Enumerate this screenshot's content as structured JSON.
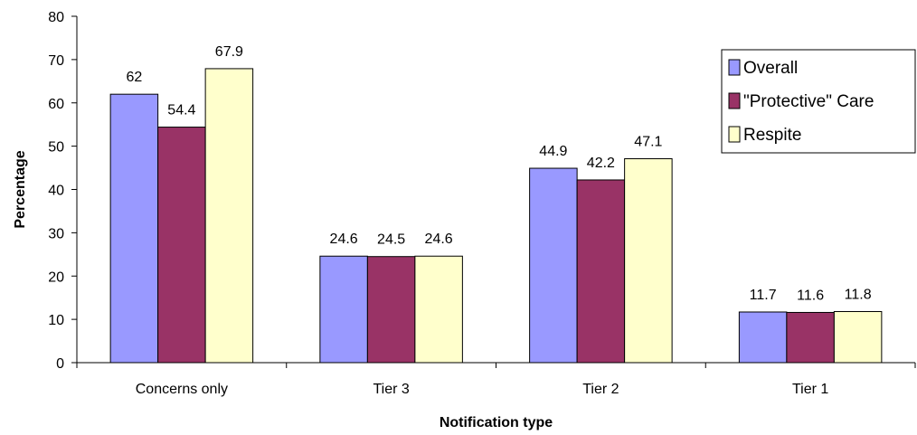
{
  "chart_data": {
    "type": "bar",
    "title": "",
    "xlabel": "Notification type",
    "ylabel": "Percentage",
    "ylim": [
      0,
      80
    ],
    "yticks": [
      0,
      10,
      20,
      30,
      40,
      50,
      60,
      70,
      80
    ],
    "grid": false,
    "legend_position": "right",
    "categories": [
      "Concerns only",
      "Tier 3",
      "Tier 2",
      "Tier 1"
    ],
    "series": [
      {
        "name": "Overall",
        "color": "#9999ff",
        "values": [
          62,
          24.6,
          44.9,
          11.7
        ],
        "labels": [
          "62",
          "24.6",
          "44.9",
          "11.7"
        ]
      },
      {
        "name": "\"Protective\" Care",
        "color": "#993366",
        "values": [
          54.4,
          24.5,
          42.2,
          11.6
        ],
        "labels": [
          "54.4",
          "24.5",
          "42.2",
          "11.6"
        ]
      },
      {
        "name": "Respite",
        "color": "#ffffcc",
        "values": [
          67.9,
          24.6,
          47.1,
          11.8
        ],
        "labels": [
          "67.9",
          "24.6",
          "47.1",
          "11.8"
        ]
      }
    ]
  }
}
